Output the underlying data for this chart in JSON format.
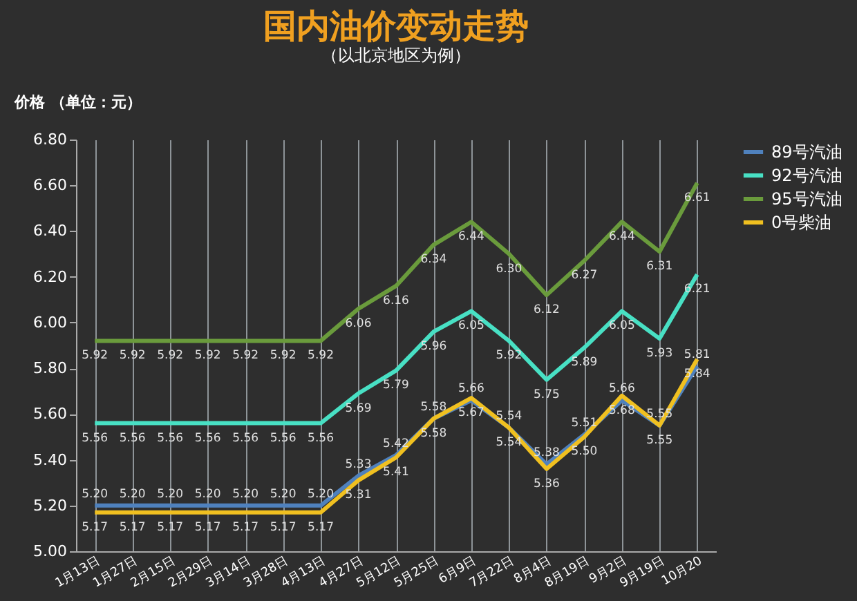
{
  "chart_data": {
    "type": "line",
    "title": "国内油价变动走势",
    "subtitle": "（以北京地区为例）",
    "ylabel": "价格 （单位：元）",
    "categories": [
      "1月13日",
      "1月27日",
      "2月15日",
      "2月29日",
      "3月14日",
      "3月28日",
      "4月13日",
      "4月27日",
      "5月12日",
      "5月25日",
      "6月9日",
      "7月22日",
      "8月4日",
      "8月19日",
      "9月2日",
      "9月19日",
      "10月20"
    ],
    "series": [
      {
        "name": "89号汽油",
        "color": "#4f81bd",
        "values": [
          5.2,
          5.2,
          5.2,
          5.2,
          5.2,
          5.2,
          5.2,
          5.33,
          5.42,
          5.58,
          5.66,
          5.54,
          5.38,
          5.51,
          5.66,
          5.55,
          5.81
        ],
        "value_labels": [
          "5.20",
          "5.20",
          "5.20",
          "5.20",
          "5.20",
          "5.20",
          "5.20",
          "5.33",
          "5.42",
          "5.58",
          "5.66",
          "5.54",
          "5.38",
          "5.51",
          "5.66",
          "5.55",
          "5.81"
        ]
      },
      {
        "name": "92号汽油",
        "color": "#48e0c4",
        "values": [
          5.56,
          5.56,
          5.56,
          5.56,
          5.56,
          5.56,
          5.56,
          5.69,
          5.79,
          5.96,
          6.05,
          5.92,
          5.75,
          5.89,
          6.05,
          5.93,
          6.21
        ],
        "value_labels": [
          "5.56",
          "5.56",
          "5.56",
          "5.56",
          "5.56",
          "5.56",
          "5.56",
          "5.69",
          "5.79",
          "5.96",
          "6.05",
          "5.92",
          "5.75",
          "5.89",
          "6.05",
          "5.93",
          "6.21"
        ]
      },
      {
        "name": "95号汽油",
        "color": "#6a9b3c",
        "values": [
          5.92,
          5.92,
          5.92,
          5.92,
          5.92,
          5.92,
          5.92,
          6.06,
          6.16,
          6.34,
          6.44,
          6.3,
          6.12,
          6.27,
          6.44,
          6.31,
          6.61
        ],
        "value_labels": [
          "5.92",
          "5.92",
          "5.92",
          "5.92",
          "5.92",
          "5.92",
          "5.92",
          "6.06",
          "6.16",
          "6.34",
          "6.44",
          "6.30",
          "6.12",
          "6.27",
          "6.44",
          "6.31",
          "6.61"
        ]
      },
      {
        "name": "0号柴油",
        "color": "#f0c020",
        "values": [
          5.17,
          5.17,
          5.17,
          5.17,
          5.17,
          5.17,
          5.17,
          5.31,
          5.41,
          5.58,
          5.67,
          5.54,
          5.36,
          5.5,
          5.68,
          5.55,
          5.84
        ],
        "value_labels": [
          "5.17",
          "5.17",
          "5.17",
          "5.17",
          "5.17",
          "5.17",
          "5.17",
          "5.31",
          "5.41",
          "5.58",
          "5.67",
          "5.54",
          "5.36",
          "5.50",
          "5.68",
          "5.55",
          "5.84"
        ]
      }
    ],
    "ylim": [
      5.0,
      6.8
    ],
    "yticks": [
      {
        "value": 5.0,
        "label": "5.00"
      },
      {
        "value": 5.2,
        "label": "5.20"
      },
      {
        "value": 5.4,
        "label": "5.40"
      },
      {
        "value": 5.6,
        "label": "5.60"
      },
      {
        "value": 5.8,
        "label": "5.80"
      },
      {
        "value": 6.0,
        "label": "6.00"
      },
      {
        "value": 6.2,
        "label": "6.20"
      },
      {
        "value": 6.4,
        "label": "6.40"
      },
      {
        "value": 6.6,
        "label": "6.60"
      },
      {
        "value": 6.8,
        "label": "6.80"
      }
    ],
    "grid": "x",
    "legend": "right",
    "marker": "none",
    "line_style": "solid"
  }
}
